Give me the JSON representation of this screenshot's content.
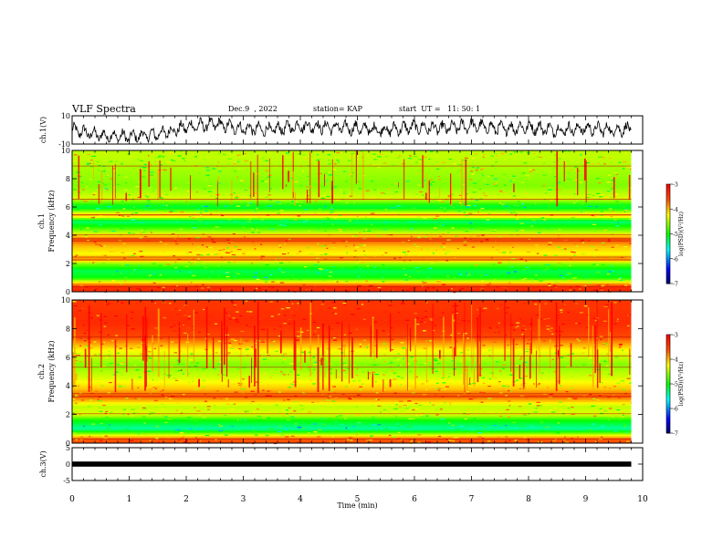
{
  "header": {
    "title": "VLF Spectra",
    "date": "Dec.9  , 2022",
    "station": "station= KAP",
    "start": "start  UT =   11: 50: 1"
  },
  "chart_data": [
    {
      "type": "line",
      "panel": "ch1-waveform",
      "ylabel": "ch.1(V)",
      "ylim": [
        -10,
        10
      ],
      "yticks": [
        "10",
        "-10"
      ],
      "xlim": [
        0,
        10
      ],
      "x": [
        0,
        0.5,
        1,
        1.5,
        2,
        2.5,
        3,
        3.5,
        4,
        4.5,
        5,
        5.5,
        6,
        6.5,
        7,
        7.5,
        8,
        8.5,
        9,
        9.5,
        9.8
      ],
      "values": [
        0,
        -4,
        -5,
        -3,
        2,
        4,
        1,
        0,
        3,
        2,
        1,
        0,
        2,
        1,
        3,
        1,
        2,
        0,
        1,
        0,
        1
      ],
      "color": "#000000"
    },
    {
      "type": "heatmap",
      "panel": "ch1-spectrogram",
      "ylabel": "ch.1\nFrequency (kHz)",
      "ylabel_lines": [
        "ch.1",
        "Frequency  (kHz)"
      ],
      "ylim": [
        0,
        10
      ],
      "yticks": [
        "0",
        "2",
        "4",
        "6",
        "8",
        "10"
      ],
      "xlim": [
        0,
        9.8
      ],
      "band_khz": [
        {
          "f": 0.3,
          "level": -3.3
        },
        {
          "f": 0.6,
          "level": -3.9
        },
        {
          "f": 1.0,
          "level": -5.0
        },
        {
          "f": 1.5,
          "level": -5.2
        },
        {
          "f": 2.0,
          "level": -4.6
        },
        {
          "f": 2.3,
          "level": -3.8
        },
        {
          "f": 2.7,
          "level": -4.2
        },
        {
          "f": 3.2,
          "level": -4.0
        },
        {
          "f": 3.7,
          "level": -3.6
        },
        {
          "f": 4.0,
          "level": -4.1
        },
        {
          "f": 4.5,
          "level": -4.8
        },
        {
          "f": 5.0,
          "level": -5.3
        },
        {
          "f": 5.4,
          "level": -3.9
        },
        {
          "f": 6.0,
          "level": -5.2
        },
        {
          "f": 6.6,
          "level": -4.3
        },
        {
          "f": 7.5,
          "level": -4.6
        },
        {
          "f": 8.5,
          "level": -4.5
        },
        {
          "f": 9.5,
          "level": -4.4
        }
      ],
      "colorbar": {
        "label": "log(PSD)(V²/Hz)",
        "min": -7,
        "max": -3,
        "ticks": [
          "-3",
          "-4",
          "-5",
          "-6",
          "-7"
        ]
      }
    },
    {
      "type": "heatmap",
      "panel": "ch2-spectrogram",
      "ylabel": "ch.2\nFrequency (kHz)",
      "ylabel_lines": [
        "ch.2",
        "Frequency  (kHz)"
      ],
      "ylim": [
        0,
        10
      ],
      "yticks": [
        "0",
        "2",
        "4",
        "6",
        "8",
        "10"
      ],
      "xlim": [
        0,
        9.8
      ],
      "band_khz": [
        {
          "f": 0.3,
          "level": -3.6
        },
        {
          "f": 1.0,
          "level": -5.4
        },
        {
          "f": 1.6,
          "level": -5.0
        },
        {
          "f": 2.0,
          "level": -4.3
        },
        {
          "f": 2.6,
          "level": -4.4
        },
        {
          "f": 3.3,
          "level": -3.6
        },
        {
          "f": 3.8,
          "level": -4.0
        },
        {
          "f": 4.5,
          "level": -4.3
        },
        {
          "f": 5.5,
          "level": -4.6
        },
        {
          "f": 6.5,
          "level": -4.2
        },
        {
          "f": 7.5,
          "level": -3.5
        },
        {
          "f": 8.5,
          "level": -3.3
        },
        {
          "f": 9.5,
          "level": -3.4
        }
      ],
      "colorbar": {
        "label": "log(PSD)(V²/Hz)",
        "min": -7,
        "max": -3,
        "ticks": [
          "-3",
          "-4",
          "-5",
          "-6",
          "-7"
        ]
      }
    },
    {
      "type": "line",
      "panel": "ch3-waveform",
      "ylabel": "ch.3(V)",
      "ylim": [
        -5,
        5
      ],
      "yticks": [
        "5",
        "0",
        "-5"
      ],
      "xlim": [
        0,
        10
      ],
      "x": [
        0,
        9.8
      ],
      "values": [
        0,
        0
      ],
      "color": "#000000"
    }
  ],
  "xaxis": {
    "label": "Time  (min)",
    "ticks": [
      "0",
      "1",
      "2",
      "3",
      "4",
      "5",
      "6",
      "7",
      "8",
      "9",
      "10"
    ],
    "range": [
      0,
      10
    ]
  },
  "colors": {
    "blue": "#0000ff",
    "cyan": "#00ffff",
    "green": "#00ff00",
    "yellow": "#ffff00",
    "red": "#ff0000",
    "dark": "#000060"
  }
}
